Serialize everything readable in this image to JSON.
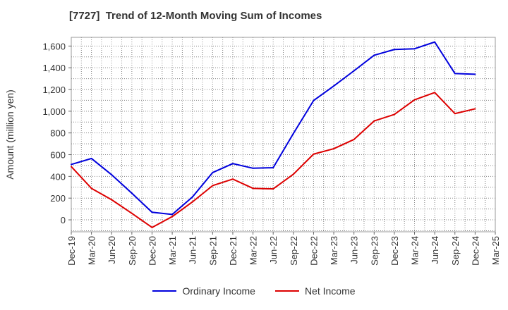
{
  "chart_data": {
    "type": "line",
    "title": "[7727]  Trend of 12-Month Moving Sum of Incomes",
    "xlabel": "",
    "ylabel": "Amount (million yen)",
    "categories": [
      "Dec-19",
      "Mar-20",
      "Jun-20",
      "Sep-20",
      "Dec-20",
      "Mar-21",
      "Jun-21",
      "Sep-21",
      "Dec-21",
      "Mar-22",
      "Jun-22",
      "Sep-22",
      "Dec-22",
      "Mar-23",
      "Jun-23",
      "Sep-23",
      "Dec-23",
      "Mar-24",
      "Jun-24",
      "Sep-24",
      "Dec-24",
      "Mar-25"
    ],
    "y_ticks": [
      "0",
      "200",
      "400",
      "600",
      "800",
      "1,000",
      "1,200",
      "1,400",
      "1,600"
    ],
    "y_tick_values": [
      0,
      200,
      400,
      600,
      800,
      1000,
      1200,
      1400,
      1600
    ],
    "ylim": [
      -110,
      1680
    ],
    "grid": true,
    "legend_position": "bottom-center",
    "series": [
      {
        "name": "Ordinary Income",
        "color": "#0000dd",
        "values": [
          510,
          565,
          415,
          245,
          70,
          50,
          210,
          435,
          518,
          475,
          480,
          795,
          1098,
          1232,
          1372,
          1515,
          1568,
          1575,
          1637,
          1347,
          1340,
          null
        ]
      },
      {
        "name": "Net Income",
        "color": "#dd0000",
        "values": [
          490,
          290,
          185,
          60,
          -70,
          30,
          165,
          315,
          375,
          290,
          285,
          420,
          605,
          655,
          740,
          910,
          970,
          1105,
          1172,
          978,
          1022,
          null
        ]
      }
    ]
  }
}
